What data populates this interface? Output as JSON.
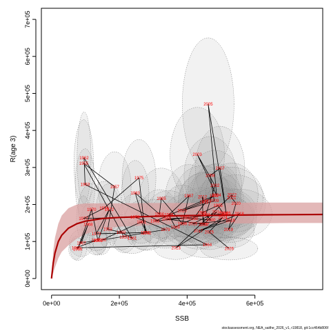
{
  "chart_data": {
    "type": "scatter",
    "xlabel": "SSB",
    "ylabel": "R(age 3)",
    "xlim": [
      -30000,
      800000
    ],
    "ylim": [
      -30000,
      730000
    ],
    "x_ticks": [
      0,
      200000,
      400000,
      600000
    ],
    "x_tick_labels": [
      "0e+00",
      "2e+05",
      "4e+05",
      "6e+05"
    ],
    "y_ticks": [
      0,
      100000,
      200000,
      300000,
      400000,
      500000,
      600000,
      700000
    ],
    "y_tick_labels": [
      "0e+00",
      "1e+05",
      "2e+05",
      "3e+05",
      "4e+05",
      "5e+05",
      "6e+05",
      "7e+05"
    ],
    "grid": false,
    "colors": {
      "points": "#ff0000",
      "fit": "#aa0000",
      "band": "#d9a0a0",
      "ellipse": "#9a9a9a",
      "path": "#000000"
    },
    "series": [
      {
        "name": "",
        "points": [
          {
            "label": "1950",
            "x": 214000,
            "y": 112000
          },
          {
            "label": "1955",
            "x": 95000,
            "y": 311000
          },
          {
            "label": "1957",
            "x": 186000,
            "y": 248000
          },
          {
            "label": "1958",
            "x": 166000,
            "y": 133000
          },
          {
            "label": "1960",
            "x": 205000,
            "y": 125000
          },
          {
            "label": "1961",
            "x": 238000,
            "y": 109000
          },
          {
            "label": "1962",
            "x": 96000,
            "y": 326000
          },
          {
            "label": "1963",
            "x": 99000,
            "y": 254000
          },
          {
            "label": "1964",
            "x": 459000,
            "y": 91000
          },
          {
            "label": "1965",
            "x": 73000,
            "y": 83000
          },
          {
            "label": "1966",
            "x": 131000,
            "y": 103000
          },
          {
            "label": "1967",
            "x": 88000,
            "y": 96000
          },
          {
            "label": "1968",
            "x": 108000,
            "y": 146000
          },
          {
            "label": "1969",
            "x": 77000,
            "y": 79000
          },
          {
            "label": "1970",
            "x": 118000,
            "y": 186000
          },
          {
            "label": "1971",
            "x": 137000,
            "y": 102000
          },
          {
            "label": "1972",
            "x": 170000,
            "y": 186000
          },
          {
            "label": "1973",
            "x": 132000,
            "y": 121000
          },
          {
            "label": "1974",
            "x": 276000,
            "y": 124000
          },
          {
            "label": "1975",
            "x": 258000,
            "y": 272000
          },
          {
            "label": "1976",
            "x": 155000,
            "y": 190000
          },
          {
            "label": "1977",
            "x": 94000,
            "y": 162000
          },
          {
            "label": "1978",
            "x": 246000,
            "y": 166000
          },
          {
            "label": "1979",
            "x": 336000,
            "y": 132000
          },
          {
            "label": "1980",
            "x": 148000,
            "y": 104000
          },
          {
            "label": "1981",
            "x": 265000,
            "y": 153000
          },
          {
            "label": "1982",
            "x": 281000,
            "y": 123000
          },
          {
            "label": "1983",
            "x": 247000,
            "y": 231000
          },
          {
            "label": "1984",
            "x": 318000,
            "y": 174000
          },
          {
            "label": "1985",
            "x": 324000,
            "y": 216000
          },
          {
            "label": "1986",
            "x": 386000,
            "y": 148000
          },
          {
            "label": "1987",
            "x": 405000,
            "y": 223000
          },
          {
            "label": "1988",
            "x": 346000,
            "y": 172000
          },
          {
            "label": "1989",
            "x": 365000,
            "y": 139000
          },
          {
            "label": "1990",
            "x": 419000,
            "y": 162000
          },
          {
            "label": "1991",
            "x": 457000,
            "y": 209000
          },
          {
            "label": "1992",
            "x": 479000,
            "y": 223000
          },
          {
            "label": "1993",
            "x": 305000,
            "y": 155000
          },
          {
            "label": "1994",
            "x": 507000,
            "y": 175000
          },
          {
            "label": "1995",
            "x": 491000,
            "y": 197000
          },
          {
            "label": "1996",
            "x": 444000,
            "y": 178000
          },
          {
            "label": "1997",
            "x": 452000,
            "y": 146000
          },
          {
            "label": "1998",
            "x": 339000,
            "y": 161000
          },
          {
            "label": "1999",
            "x": 393000,
            "y": 164000
          },
          {
            "label": "2000",
            "x": 470000,
            "y": 158000
          },
          {
            "label": "2001",
            "x": 455000,
            "y": 172000
          },
          {
            "label": "2002",
            "x": 482000,
            "y": 251000
          },
          {
            "label": "2003",
            "x": 430000,
            "y": 335000
          },
          {
            "label": "2004",
            "x": 487000,
            "y": 225000
          },
          {
            "label": "2005",
            "x": 462000,
            "y": 471000
          },
          {
            "label": "2006",
            "x": 515000,
            "y": 177000
          },
          {
            "label": "2007",
            "x": 497000,
            "y": 298000
          },
          {
            "label": "2008",
            "x": 468000,
            "y": 278000
          },
          {
            "label": "2009",
            "x": 480000,
            "y": 210000
          },
          {
            "label": "2010",
            "x": 385000,
            "y": 183000
          },
          {
            "label": "2011",
            "x": 450000,
            "y": 207000
          },
          {
            "label": "2012",
            "x": 445000,
            "y": 221000
          },
          {
            "label": "2013",
            "x": 447000,
            "y": 146000
          },
          {
            "label": "2014",
            "x": 488000,
            "y": 180000
          },
          {
            "label": "2015",
            "x": 417000,
            "y": 148000
          },
          {
            "label": "2016",
            "x": 528000,
            "y": 157000
          },
          {
            "label": "2017",
            "x": 433000,
            "y": 128000
          },
          {
            "label": "2018",
            "x": 554000,
            "y": 175000
          },
          {
            "label": "2019",
            "x": 522000,
            "y": 132000
          },
          {
            "label": "2020",
            "x": 544000,
            "y": 203000
          },
          {
            "label": "2021",
            "x": 531000,
            "y": 218000
          },
          {
            "label": "2022",
            "x": 532000,
            "y": 226000
          },
          {
            "label": "2023",
            "x": 367000,
            "y": 83000
          },
          {
            "label": "2024",
            "x": 505000,
            "y": 165000
          },
          {
            "label": "2025",
            "x": 465000,
            "y": 126000
          },
          {
            "label": "2026",
            "x": 524000,
            "y": 81000
          }
        ]
      }
    ],
    "fit_line": {
      "x": [
        0,
        5000,
        10000,
        20000,
        30000,
        50000,
        75000,
        100000,
        150000,
        200000,
        300000,
        400000,
        500000,
        600000,
        700000,
        800000
      ],
      "y": [
        0,
        42000,
        69000,
        100000,
        117000,
        136000,
        148000,
        155000,
        162000,
        165000,
        168000,
        170000,
        171000,
        172000,
        172500,
        173000
      ]
    },
    "fit_band": {
      "x": [
        0,
        5000,
        10000,
        20000,
        30000,
        50000,
        75000,
        100000,
        150000,
        200000,
        300000,
        400000,
        500000,
        600000,
        700000,
        800000
      ],
      "lower": [
        0,
        15000,
        30000,
        55000,
        72000,
        90000,
        108000,
        120000,
        135000,
        140000,
        145000,
        147000,
        148000,
        149000,
        150000,
        150000
      ],
      "upper": [
        0,
        75000,
        110000,
        148000,
        170000,
        190000,
        200000,
        203000,
        203000,
        203000,
        204000,
        204000,
        204000,
        205000,
        205000,
        205000
      ]
    },
    "footnote": "stockassessment.org, NEA_saithe_2026_v1, r19818, git:1cc464b806f"
  }
}
